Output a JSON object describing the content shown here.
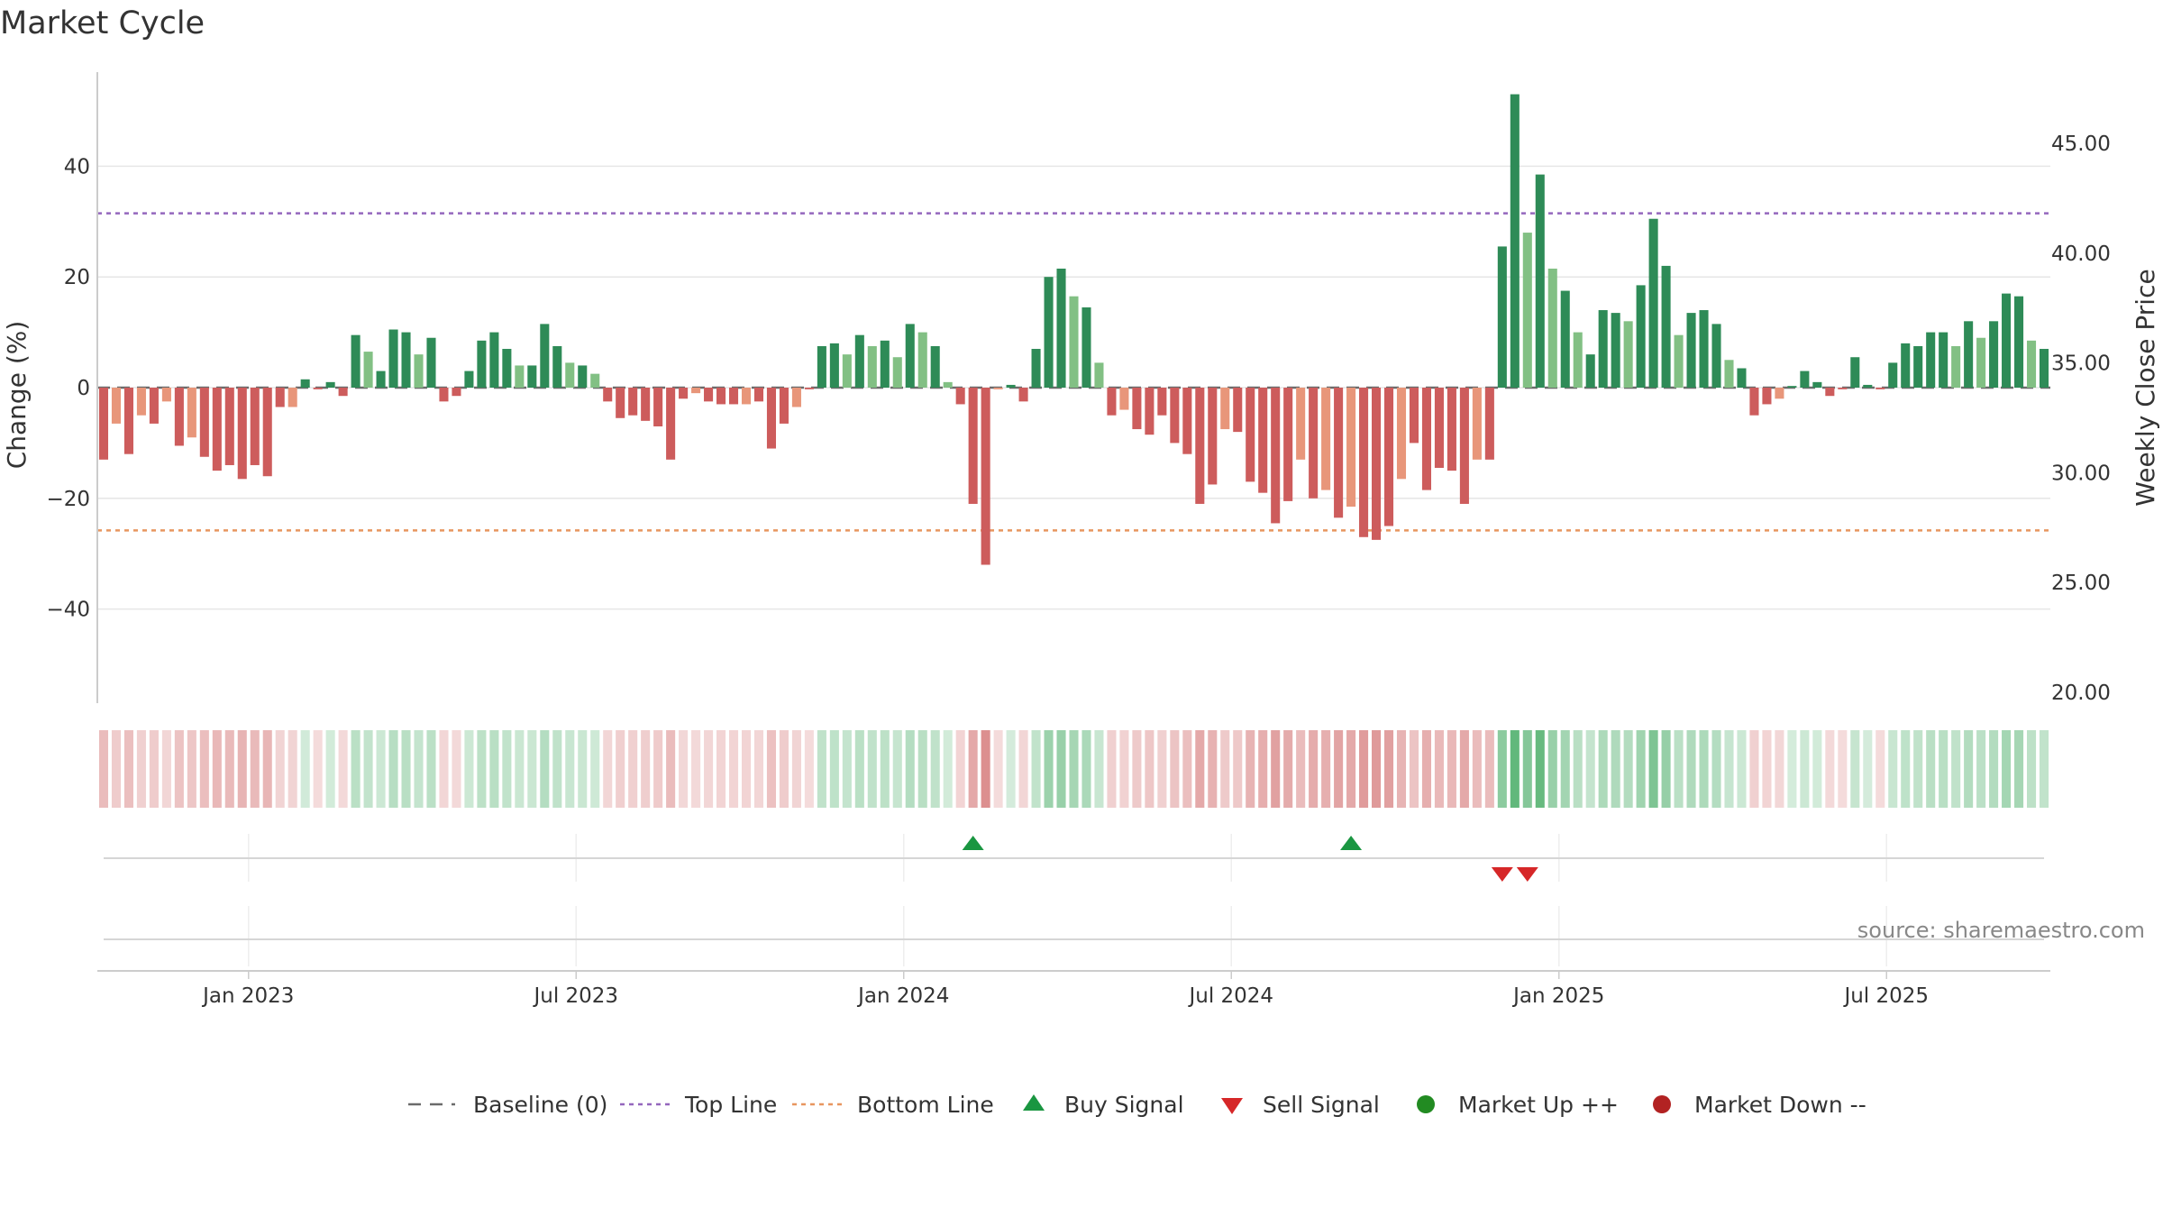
{
  "chart_data": {
    "type": "bar",
    "title": "Market Cycle",
    "ylabel": "Change (%)",
    "y2label": "Weekly Close Price",
    "ylim": [
      -57,
      57
    ],
    "y2lim": [
      20,
      48
    ],
    "yticks": [
      40,
      20,
      0,
      -20,
      -40
    ],
    "ytick_labels": [
      "40",
      "20",
      "0",
      "−20",
      "−40"
    ],
    "y2ticks": [
      45,
      40,
      35,
      30,
      25,
      20
    ],
    "y2tick_labels": [
      "45.00",
      "40.00",
      "35.00",
      "30.00",
      "25.00",
      "20.00"
    ],
    "top_line": 31.5,
    "bottom_line": -25.8,
    "x_tick_labels": [
      "Jan 2023",
      "Jul 2023",
      "Jan 2024",
      "Jul 2024",
      "Jan 2025",
      "Jul 2025"
    ],
    "x_tick_weeks": [
      12,
      38,
      64,
      90,
      116,
      142
    ],
    "grid": true,
    "values": [
      -13,
      -6.5,
      -12,
      -5,
      -6.5,
      -2.5,
      -10.5,
      -9,
      -12.5,
      -15,
      -14,
      -16.5,
      -14,
      -16,
      -3.5,
      -3.5,
      1.5,
      -0.3,
      1,
      -1.5,
      9.5,
      6.5,
      3,
      10.5,
      10,
      6,
      9,
      -2.5,
      -1.5,
      3,
      8.5,
      10,
      7,
      4,
      4,
      11.5,
      7.5,
      4.5,
      4,
      2.5,
      -2.5,
      -5.5,
      -5,
      -6,
      -7,
      -13,
      -2,
      -1,
      -2.5,
      -3,
      -3,
      -3,
      -2.5,
      -11,
      -6.5,
      -3.5,
      -0.3,
      7.5,
      8,
      6,
      9.5,
      7.5,
      8.5,
      5.5,
      11.5,
      10,
      7.5,
      1,
      -3,
      -21,
      -32,
      -0.3,
      0.5,
      -2.5,
      7,
      20,
      21.5,
      16.5,
      14.5,
      4.5,
      -5,
      -4,
      -7.5,
      -8.5,
      -5,
      -10,
      -12,
      -21,
      -17.5,
      -7.5,
      -8,
      -17,
      -19,
      -24.5,
      -20.5,
      -13,
      -20,
      -18.5,
      -23.5,
      -21.5,
      -27,
      -27.5,
      -25,
      -16.5,
      -10,
      -18.5,
      -14.5,
      -15,
      -21,
      -13,
      -13,
      25.5,
      53,
      28,
      38.5,
      21.5,
      17.5,
      10,
      6,
      14,
      13.5,
      12,
      18.5,
      30.5,
      22,
      9.5,
      13.5,
      14,
      11.5,
      5,
      3.5,
      -5,
      -3,
      -2,
      0.3,
      3,
      1,
      -1.5,
      -0.3,
      5.5,
      0.5,
      -0.3,
      4.5,
      8,
      7.5,
      10,
      10,
      7.5,
      12,
      9,
      12,
      17,
      16.5,
      8.5,
      7
    ],
    "buy_signal_weeks": [
      69,
      99
    ],
    "sell_signal_weeks": [
      111,
      113
    ],
    "source": "source: sharemaestro.com",
    "legend": [
      {
        "label": "Baseline (0)",
        "icon": "dash-line",
        "color": "#6b6b6b"
      },
      {
        "label": "Top Line",
        "icon": "dotted-line",
        "color": "#9467bd"
      },
      {
        "label": "Bottom Line",
        "icon": "dotted-line",
        "color": "#e8965f"
      },
      {
        "label": "Buy Signal",
        "icon": "triangle-up",
        "color": "#1a9641"
      },
      {
        "label": "Sell Signal",
        "icon": "triangle-down",
        "color": "#d62728"
      },
      {
        "label": "Market Up ++",
        "icon": "circle",
        "color": "#228b22"
      },
      {
        "label": "Market Down --",
        "icon": "circle",
        "color": "#b22222"
      }
    ],
    "colors": {
      "up_dark": "#2e8b57",
      "up_light": "#82c084",
      "down_dark": "#cd5c5c",
      "down_light": "#e8967a",
      "top_line": "#9467bd",
      "bottom_line": "#e8965f",
      "baseline": "#6b6b6b",
      "buy": "#1a9641",
      "sell": "#d62728"
    }
  }
}
